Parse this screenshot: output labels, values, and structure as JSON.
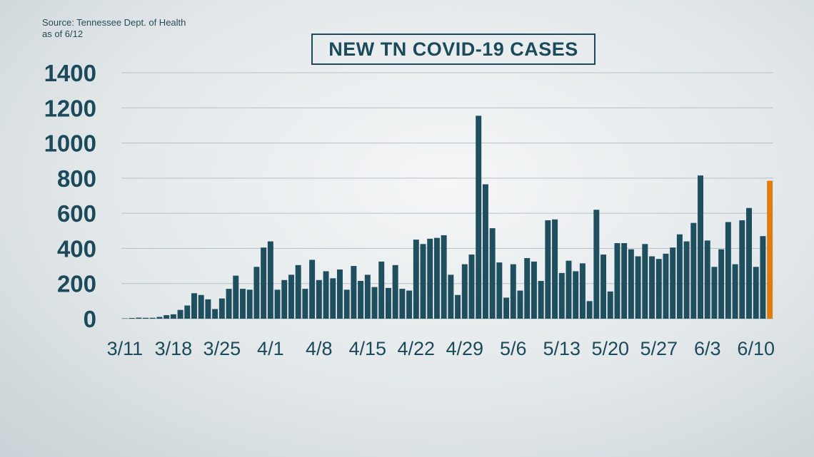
{
  "source": {
    "line1": "Source: Tennessee Dept. of Health",
    "line2": "as of 6/12"
  },
  "colors": {
    "bar": "#1f4f5f",
    "highlight": "#e07b10",
    "grid": "#b5c1c6",
    "text": "#1c4a5a"
  },
  "chart_data": {
    "type": "bar",
    "title": "NEW TN COVID-19 CASES",
    "xlabel": "",
    "ylabel": "",
    "ylim": [
      0,
      1400
    ],
    "y_ticks": [
      0,
      200,
      400,
      600,
      800,
      1000,
      1200,
      1400
    ],
    "grid": true,
    "x_tick_labels": [
      "3/11",
      "3/18",
      "3/25",
      "4/1",
      "4/8",
      "4/15",
      "4/22",
      "4/29",
      "5/6",
      "5/13",
      "5/20",
      "5/27",
      "6/3",
      "6/10"
    ],
    "x_tick_every": 7,
    "highlight_last": true,
    "values": [
      2,
      4,
      6,
      5,
      5,
      10,
      20,
      25,
      50,
      75,
      145,
      135,
      110,
      55,
      115,
      170,
      245,
      170,
      165,
      295,
      405,
      440,
      165,
      220,
      250,
      305,
      170,
      335,
      220,
      270,
      230,
      280,
      165,
      300,
      215,
      250,
      180,
      325,
      175,
      305,
      170,
      160,
      450,
      425,
      455,
      460,
      475,
      250,
      135,
      310,
      365,
      1155,
      765,
      515,
      320,
      120,
      310,
      160,
      345,
      325,
      215,
      560,
      565,
      260,
      330,
      270,
      315,
      100,
      620,
      365,
      155,
      430,
      430,
      395,
      355,
      425,
      355,
      340,
      370,
      405,
      480,
      440,
      545,
      815,
      445,
      295,
      395,
      550,
      310,
      560,
      630,
      295,
      470,
      785
    ]
  }
}
